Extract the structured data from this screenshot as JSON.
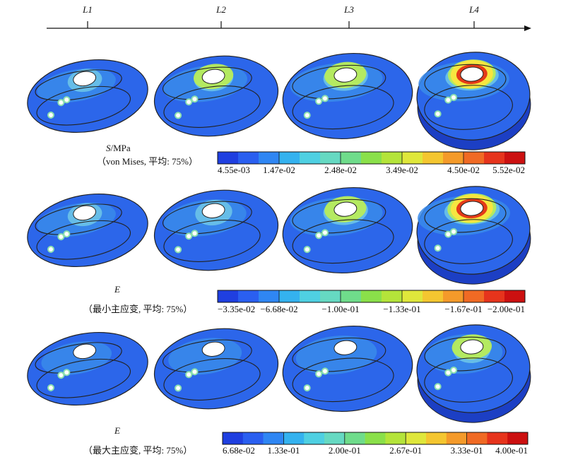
{
  "axis": {
    "labels": [
      "L1",
      "L2",
      "L3",
      "L4"
    ]
  },
  "palette": {
    "background": "#ffffff",
    "bar_colors": [
      "#1f3fe0",
      "#2a5ff0",
      "#2f86f3",
      "#34b2ef",
      "#4fd0e2",
      "#66d9c2",
      "#6fdc8b",
      "#8ae04a",
      "#b4e43a",
      "#dfe73b",
      "#f4c630",
      "#f49a2a",
      "#f06a24",
      "#e6341c",
      "#cc1010"
    ],
    "stress_colors": [
      "#1f46d8",
      "#2c66ea",
      "#3a8bea",
      "#6cc3e8",
      "#8ee0b0",
      "#b8ec5a",
      "#f7e640",
      "#f39a22",
      "#e43a18",
      "#c8141a"
    ]
  },
  "rows": [
    {
      "id": "von-mises",
      "symbol": "S",
      "unit": "/MPa",
      "note": "（von Mises, 平均: 75%）",
      "ticks": [
        "4.55e-03",
        "1.47e-02",
        "2.48e-02",
        "3.49e-02",
        "4.50e-02",
        "5.52e-02"
      ],
      "maps": [
        {
          "stress": 0.35
        },
        {
          "stress": 0.45
        },
        {
          "stress": 0.55
        },
        {
          "stress": 0.85
        }
      ]
    },
    {
      "id": "min-principal",
      "symbol": "E",
      "unit": "",
      "note": "（最小主应变, 平均: 75%）",
      "ticks": [
        "−3.35e-02",
        "−6.68e-02",
        "−1.00e-01",
        "−1.33e-01",
        "−1.67e-01",
        "−2.00e-01"
      ],
      "maps": [
        {
          "stress": 0.35
        },
        {
          "stress": 0.4
        },
        {
          "stress": 0.55
        },
        {
          "stress": 0.9
        }
      ]
    },
    {
      "id": "max-principal",
      "symbol": "E",
      "unit": "",
      "note": "（最大主应变, 平均: 75%）",
      "ticks": [
        "6.68e-02",
        "1.33e-01",
        "2.00e-01",
        "2.67e-01",
        "3.33e-01",
        "4.00e-01"
      ],
      "maps": [
        {
          "stress": 0.12
        },
        {
          "stress": 0.15
        },
        {
          "stress": 0.25
        },
        {
          "stress": 0.45
        }
      ]
    }
  ]
}
